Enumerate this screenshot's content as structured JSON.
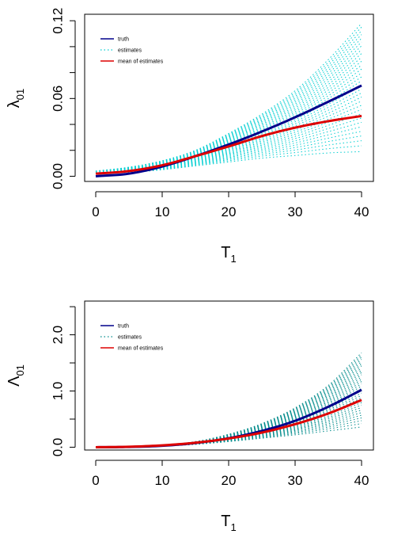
{
  "chart_data": [
    {
      "type": "line",
      "xlabel": "T",
      "xlabel_sub": "1",
      "ylabel": "λ",
      "ylabel_sub": "01",
      "xlim": [
        0,
        40
      ],
      "ylim": [
        -0.004,
        0.125
      ],
      "x_ticks": [
        0,
        10,
        20,
        30,
        40
      ],
      "x_tick_labels": [
        "0",
        "10",
        "20",
        "30",
        "40"
      ],
      "y_ticks": [
        0.0,
        0.06,
        0.12
      ],
      "y_tick_labels": [
        "0.00",
        "0.06",
        "0.12"
      ],
      "y_minor_ticks": [
        0.02,
        0.04,
        0.08,
        0.1
      ],
      "x": [
        0,
        5,
        10,
        15,
        20,
        25,
        30,
        35,
        40
      ],
      "series": [
        {
          "name": "truth",
          "values": [
            0.0,
            0.002,
            0.0075,
            0.0155,
            0.0245,
            0.0345,
            0.0455,
            0.0575,
            0.07
          ]
        },
        {
          "name": "estimates",
          "band_lower": [
            0.003,
            0.003,
            0.005,
            0.008,
            0.011,
            0.014,
            0.016,
            0.018,
            0.019
          ],
          "band_upper": [
            0.004,
            0.007,
            0.012,
            0.02,
            0.033,
            0.048,
            0.066,
            0.09,
            0.118
          ]
        },
        {
          "name": "mean of estimates",
          "values": [
            0.002,
            0.004,
            0.0085,
            0.0155,
            0.023,
            0.031,
            0.0375,
            0.0425,
            0.0465
          ]
        }
      ],
      "legend": {
        "position": "top-left",
        "entries": [
          "truth",
          "estimates",
          "mean of estimates"
        ]
      },
      "colors": {
        "truth": "#00008b",
        "estimates": "#00ced1",
        "mean": "#dd0000"
      },
      "grid": false
    },
    {
      "type": "line",
      "xlabel": "T",
      "xlabel_sub": "1",
      "ylabel": "Λ",
      "ylabel_sub": "01",
      "xlim": [
        0,
        40
      ],
      "ylim": [
        -0.05,
        2.6
      ],
      "x_ticks": [
        0,
        10,
        20,
        30,
        40
      ],
      "x_tick_labels": [
        "0",
        "10",
        "20",
        "30",
        "40"
      ],
      "y_ticks": [
        0.0,
        1.0,
        2.0
      ],
      "y_tick_labels": [
        "0.0",
        "1.0",
        "2.0"
      ],
      "y_minor_ticks": [
        0.5,
        1.5,
        2.5
      ],
      "x": [
        0,
        5,
        10,
        15,
        20,
        25,
        30,
        35,
        40
      ],
      "series": [
        {
          "name": "truth",
          "values": [
            0.0,
            0.005,
            0.025,
            0.075,
            0.16,
            0.29,
            0.47,
            0.72,
            1.02
          ]
        },
        {
          "name": "estimates",
          "band_lower": [
            0.0,
            0.005,
            0.02,
            0.05,
            0.1,
            0.16,
            0.22,
            0.29,
            0.36
          ],
          "band_upper": [
            0.0,
            0.01,
            0.04,
            0.1,
            0.23,
            0.42,
            0.7,
            1.1,
            1.68
          ]
        },
        {
          "name": "mean of estimates",
          "values": [
            0.0,
            0.008,
            0.033,
            0.08,
            0.155,
            0.26,
            0.41,
            0.6,
            0.84
          ]
        }
      ],
      "legend": {
        "position": "top-left",
        "entries": [
          "truth",
          "estimates",
          "mean of estimates"
        ]
      },
      "colors": {
        "truth": "#00008b",
        "estimates": "#008b8b",
        "mean": "#dd0000"
      },
      "grid": false
    }
  ]
}
